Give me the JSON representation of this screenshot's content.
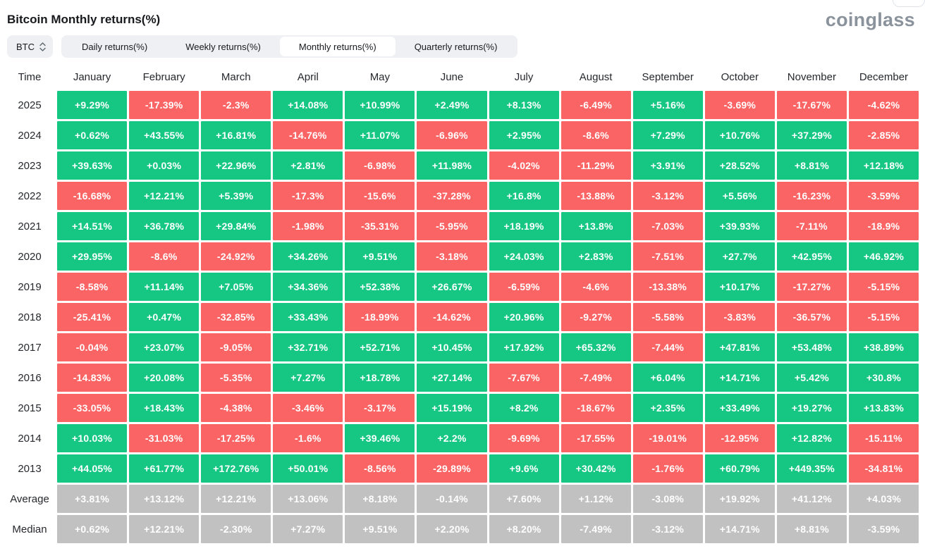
{
  "page": {
    "title": "Bitcoin Monthly returns(%)",
    "brand": "coinglass"
  },
  "controls": {
    "coin_selector": {
      "label": "BTC"
    },
    "tabs": [
      {
        "label": "Daily returns(%)",
        "active": false
      },
      {
        "label": "Weekly returns(%)",
        "active": false
      },
      {
        "label": "Monthly returns(%)",
        "active": true
      },
      {
        "label": "Quarterly returns(%)",
        "active": false
      }
    ]
  },
  "colors": {
    "positive_green": "#16c784",
    "negative_red": "#fa6464",
    "stat_gray": "#c1c1c1",
    "control_bg": "#eef0f3",
    "brand_gray": "#8a929b"
  },
  "chart_data": {
    "type": "heatmap",
    "title": "Bitcoin Monthly returns(%)",
    "corner_label": "Time",
    "months": [
      "January",
      "February",
      "March",
      "April",
      "May",
      "June",
      "July",
      "August",
      "September",
      "October",
      "November",
      "December"
    ],
    "rows": [
      {
        "label": "2025",
        "kind": "year",
        "values": [
          "+9.29%",
          "-17.39%",
          "-2.3%",
          "+14.08%",
          "+10.99%",
          "+2.49%",
          "+8.13%",
          "-6.49%",
          "+5.16%",
          "-3.69%",
          "-17.67%",
          "-4.62%"
        ]
      },
      {
        "label": "2024",
        "kind": "year",
        "values": [
          "+0.62%",
          "+43.55%",
          "+16.81%",
          "-14.76%",
          "+11.07%",
          "-6.96%",
          "+2.95%",
          "-8.6%",
          "+7.29%",
          "+10.76%",
          "+37.29%",
          "-2.85%"
        ]
      },
      {
        "label": "2023",
        "kind": "year",
        "values": [
          "+39.63%",
          "+0.03%",
          "+22.96%",
          "+2.81%",
          "-6.98%",
          "+11.98%",
          "-4.02%",
          "-11.29%",
          "+3.91%",
          "+28.52%",
          "+8.81%",
          "+12.18%"
        ]
      },
      {
        "label": "2022",
        "kind": "year",
        "values": [
          "-16.68%",
          "+12.21%",
          "+5.39%",
          "-17.3%",
          "-15.6%",
          "-37.28%",
          "+16.8%",
          "-13.88%",
          "-3.12%",
          "+5.56%",
          "-16.23%",
          "-3.59%"
        ]
      },
      {
        "label": "2021",
        "kind": "year",
        "values": [
          "+14.51%",
          "+36.78%",
          "+29.84%",
          "-1.98%",
          "-35.31%",
          "-5.95%",
          "+18.19%",
          "+13.8%",
          "-7.03%",
          "+39.93%",
          "-7.11%",
          "-18.9%"
        ]
      },
      {
        "label": "2020",
        "kind": "year",
        "values": [
          "+29.95%",
          "-8.6%",
          "-24.92%",
          "+34.26%",
          "+9.51%",
          "-3.18%",
          "+24.03%",
          "+2.83%",
          "-7.51%",
          "+27.7%",
          "+42.95%",
          "+46.92%"
        ]
      },
      {
        "label": "2019",
        "kind": "year",
        "values": [
          "-8.58%",
          "+11.14%",
          "+7.05%",
          "+34.36%",
          "+52.38%",
          "+26.67%",
          "-6.59%",
          "-4.6%",
          "-13.38%",
          "+10.17%",
          "-17.27%",
          "-5.15%"
        ]
      },
      {
        "label": "2018",
        "kind": "year",
        "values": [
          "-25.41%",
          "+0.47%",
          "-32.85%",
          "+33.43%",
          "-18.99%",
          "-14.62%",
          "+20.96%",
          "-9.27%",
          "-5.58%",
          "-3.83%",
          "-36.57%",
          "-5.15%"
        ]
      },
      {
        "label": "2017",
        "kind": "year",
        "values": [
          "-0.04%",
          "+23.07%",
          "-9.05%",
          "+32.71%",
          "+52.71%",
          "+10.45%",
          "+17.92%",
          "+65.32%",
          "-7.44%",
          "+47.81%",
          "+53.48%",
          "+38.89%"
        ]
      },
      {
        "label": "2016",
        "kind": "year",
        "values": [
          "-14.83%",
          "+20.08%",
          "-5.35%",
          "+7.27%",
          "+18.78%",
          "+27.14%",
          "-7.67%",
          "-7.49%",
          "+6.04%",
          "+14.71%",
          "+5.42%",
          "+30.8%"
        ]
      },
      {
        "label": "2015",
        "kind": "year",
        "values": [
          "-33.05%",
          "+18.43%",
          "-4.38%",
          "-3.46%",
          "-3.17%",
          "+15.19%",
          "+8.2%",
          "-18.67%",
          "+2.35%",
          "+33.49%",
          "+19.27%",
          "+13.83%"
        ]
      },
      {
        "label": "2014",
        "kind": "year",
        "values": [
          "+10.03%",
          "-31.03%",
          "-17.25%",
          "-1.6%",
          "+39.46%",
          "+2.2%",
          "-9.69%",
          "-17.55%",
          "-19.01%",
          "-12.95%",
          "+12.82%",
          "-15.11%"
        ]
      },
      {
        "label": "2013",
        "kind": "year",
        "values": [
          "+44.05%",
          "+61.77%",
          "+172.76%",
          "+50.01%",
          "-8.56%",
          "-29.89%",
          "+9.6%",
          "+30.42%",
          "-1.76%",
          "+60.79%",
          "+449.35%",
          "-34.81%"
        ]
      },
      {
        "label": "Average",
        "kind": "stat",
        "values": [
          "+3.81%",
          "+13.12%",
          "+12.21%",
          "+13.06%",
          "+8.18%",
          "-0.14%",
          "+7.60%",
          "+1.12%",
          "-3.08%",
          "+19.92%",
          "+41.12%",
          "+4.03%"
        ]
      },
      {
        "label": "Median",
        "kind": "stat",
        "values": [
          "+0.62%",
          "+12.21%",
          "-2.30%",
          "+7.27%",
          "+9.51%",
          "+2.20%",
          "+8.20%",
          "-7.49%",
          "-3.12%",
          "+14.71%",
          "+8.81%",
          "-3.59%"
        ]
      }
    ]
  }
}
